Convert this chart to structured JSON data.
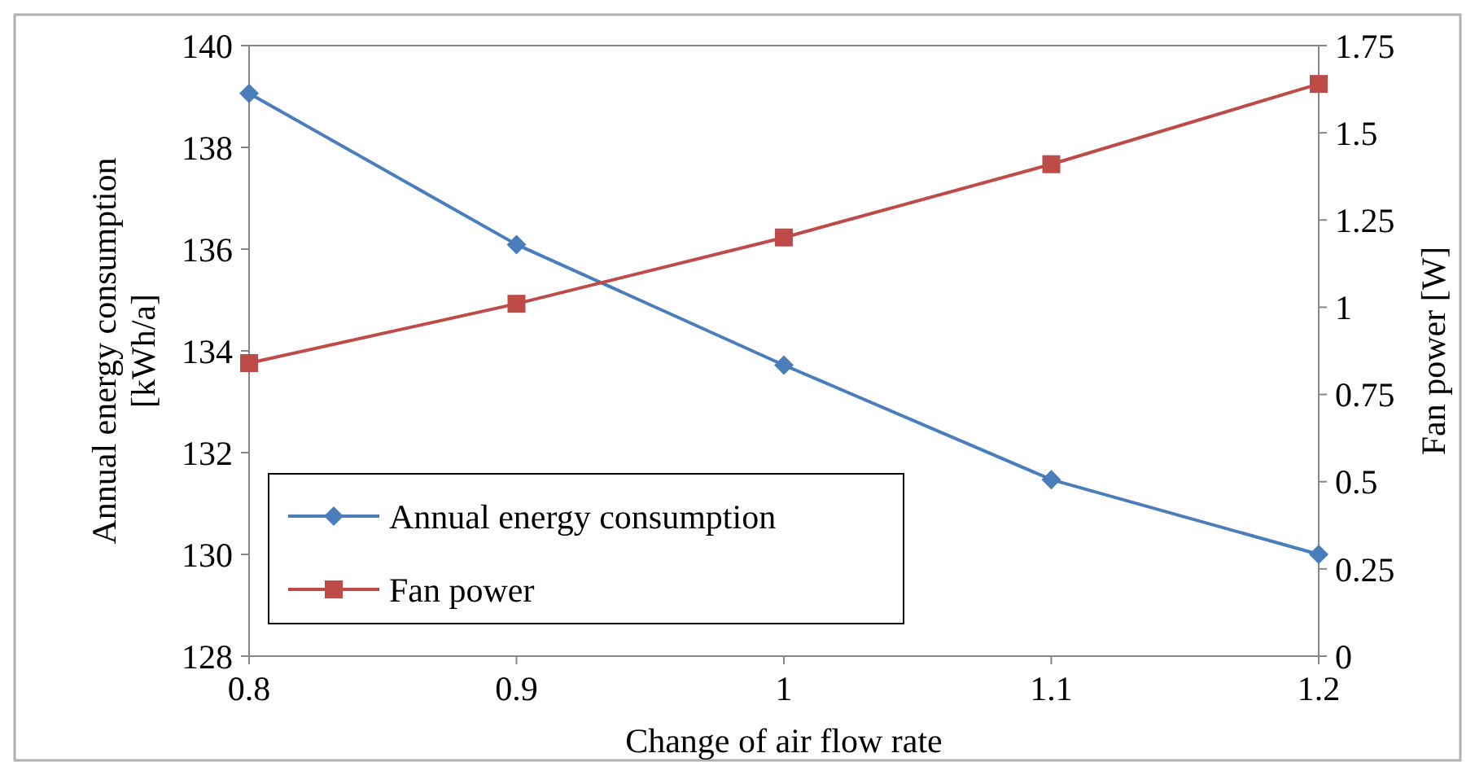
{
  "chart_data": {
    "type": "line",
    "xlabel": "Change of air flow rate",
    "ylabel": "Annual energy consumption [kWh/a]",
    "y2label": "Fan power [W]",
    "x": [
      0.8,
      0.9,
      1,
      1.1,
      1.2
    ],
    "xlim": [
      0.8,
      1.2
    ],
    "xticks": [
      0.8,
      0.9,
      1,
      1.1,
      1.2
    ],
    "ylim": [
      128,
      140
    ],
    "yticks": [
      128,
      130,
      132,
      134,
      136,
      138,
      140
    ],
    "y2lim": [
      0,
      1.75
    ],
    "y2ticks": [
      0,
      {
        "value": 0.25,
        "label": "0.25"
      },
      {
        "value": 0.5,
        "label": "0.5"
      },
      {
        "value": 0.75,
        "label": "0.75"
      },
      1,
      {
        "value": 1.25,
        "label": "1.25"
      },
      {
        "value": 1.5,
        "label": "1.5"
      },
      {
        "value": 1.75,
        "label": "1.75"
      }
    ],
    "grid": false,
    "legend": "bottom left",
    "line_style": "solid",
    "series": [
      {
        "name": "Annual energy consumption",
        "color": "#4a7ebb",
        "marker": "diamond",
        "values": [
          139.06,
          136.09,
          133.72,
          131.47,
          130.0
        ]
      },
      {
        "name": "Fan power",
        "color": "#be4b48",
        "marker": "square",
        "axis": "y2",
        "values": [
          0.84,
          1.01,
          1.2,
          1.41,
          1.64
        ]
      }
    ]
  }
}
